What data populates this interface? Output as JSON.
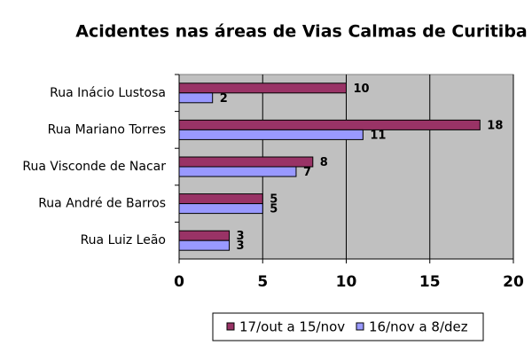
{
  "chart_data": {
    "type": "bar",
    "orientation": "horizontal",
    "title": "Acidentes nas áreas de Vias Calmas de Curitiba",
    "categories": [
      "Rua Inácio Lustosa",
      "Rua Mariano Torres",
      "Rua Visconde de Nacar",
      "Rua André de Barros",
      "Rua Luiz Leão"
    ],
    "series": [
      {
        "name": "17/out a 15/nov",
        "color": "#993366",
        "values": [
          10,
          18,
          8,
          5,
          3
        ]
      },
      {
        "name": "16/nov a 8/dez",
        "color": "#9999ff",
        "values": [
          2,
          11,
          7,
          5,
          3
        ]
      }
    ],
    "xlim": [
      0,
      20
    ],
    "xticks": [
      0,
      5,
      10,
      15,
      20
    ],
    "grid": true,
    "legend": "bottom"
  }
}
